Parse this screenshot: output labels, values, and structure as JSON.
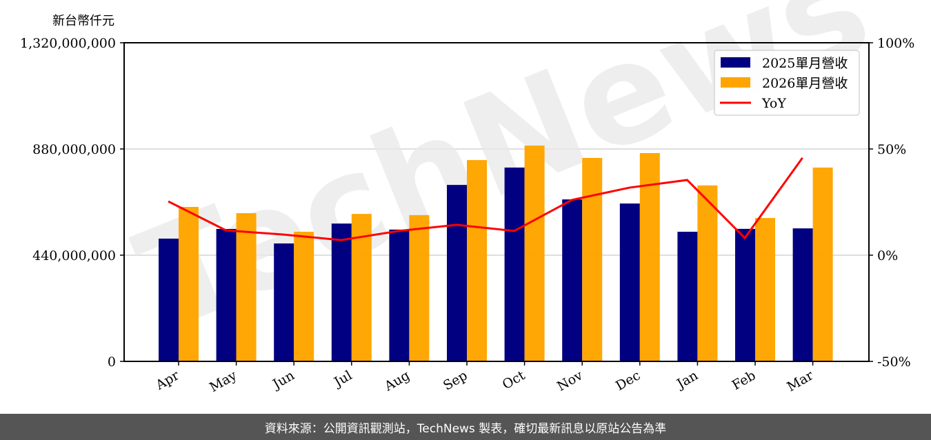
{
  "unit_label": "新台幣仟元",
  "footer": "資料來源：公開資訊觀測站，TechNews 製表，確切最新訊息以原站公告為準",
  "watermark": "TechNews",
  "colors": {
    "series2025": "#000080",
    "series2026": "#FFA500",
    "yoy": "#FF0000",
    "grid": "#d3d3d3",
    "footer_bg": "#555555"
  },
  "chart_data": {
    "type": "bar",
    "title": "",
    "xlabel": "",
    "ylabel": "新台幣仟元",
    "categories": [
      "Apr",
      "May",
      "Jun",
      "Jul",
      "Aug",
      "Sep",
      "Oct",
      "Nov",
      "Dec",
      "Jan",
      "Feb",
      "Mar"
    ],
    "series": [
      {
        "name": "2025單月營收",
        "type": "bar",
        "axis": "left",
        "values": [
          508600000,
          548600000,
          488600000,
          571000000,
          546000000,
          731000000,
          803000000,
          671000000,
          654000000,
          537000000,
          549000000,
          551000000
        ]
      },
      {
        "name": "2026單月營收",
        "type": "bar",
        "axis": "left",
        "values": [
          640000000,
          614000000,
          537000000,
          611000000,
          606000000,
          834000000,
          894000000,
          843000000,
          863000000,
          729000000,
          594000000,
          803000000
        ]
      },
      {
        "name": "YoY",
        "type": "line",
        "axis": "right",
        "values": [
          25.3,
          11.7,
          9.7,
          7.1,
          11.4,
          14.3,
          11.4,
          26.0,
          31.8,
          35.4,
          8.1,
          45.8
        ]
      }
    ],
    "ylim": [
      0,
      1320000000
    ],
    "yticks": [
      0,
      440000000,
      880000000,
      1320000000
    ],
    "ytick_labels": [
      "0",
      "440,000,000",
      "880,000,000",
      "1,320,000,000"
    ],
    "y2lim": [
      -50,
      100
    ],
    "y2ticks": [
      -50,
      0,
      50,
      100
    ],
    "y2tick_labels": [
      "-50%",
      "0%",
      "50%",
      "100%"
    ],
    "grid": "horizontal",
    "legend_position": "upper right",
    "legend": [
      "2025單月營收",
      "2026單月營收",
      "YoY"
    ]
  }
}
